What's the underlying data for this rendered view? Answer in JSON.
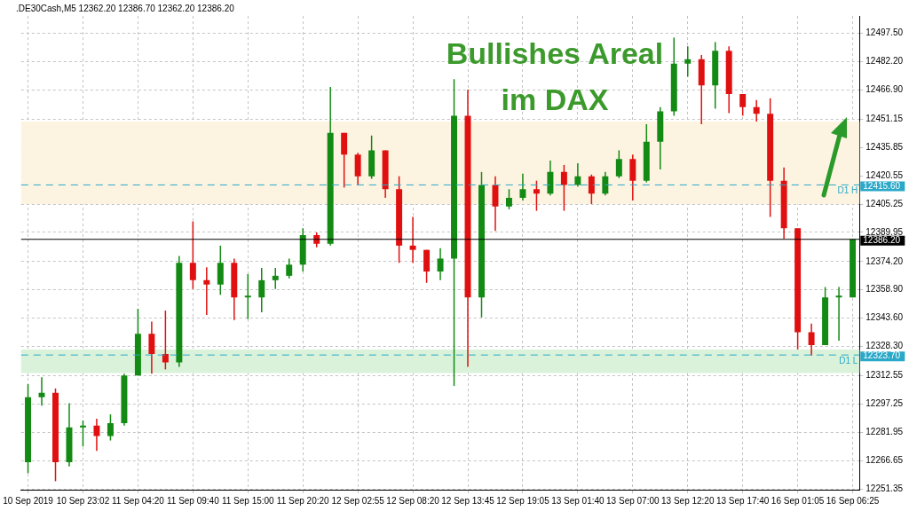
{
  "chart_data": {
    "type": "candlestick",
    "title": "Bullishes Areal im DAX",
    "subtitle": ".DE30Cash,M5  12362.20 12386.70 12362.20 12386.20",
    "categories": [
      "10 Sep 2019",
      null,
      null,
      null,
      "10 Sep 23:02",
      null,
      null,
      null,
      "11 Sep 04:20",
      null,
      null,
      null,
      "11 Sep 09:40",
      null,
      null,
      null,
      "11 Sep 15:00",
      null,
      null,
      null,
      "11 Sep 20:20",
      null,
      null,
      null,
      "12 Sep 02:55",
      null,
      null,
      null,
      "12 Sep 08:20",
      null,
      null,
      null,
      "12 Sep 13:45",
      null,
      null,
      null,
      "12 Sep 19:05",
      null,
      null,
      null,
      "13 Sep 01:40",
      null,
      null,
      null,
      "13 Sep 07:00",
      null,
      null,
      null,
      "13 Sep 12:20",
      null,
      null,
      null,
      "13 Sep 17:40",
      null,
      null,
      null,
      "16 Sep 01:05",
      null,
      null,
      null,
      "16 Sep 06:25"
    ],
    "ohlc": [
      [
        12265.8,
        12308.0,
        12259.8,
        12300.9
      ],
      [
        12300.9,
        12311.7,
        12296.3,
        12303.3
      ],
      [
        12303.3,
        12305.6,
        12255.5,
        12265.8
      ],
      [
        12265.8,
        12297.7,
        12263.5,
        12284.6
      ],
      [
        12284.6,
        12288.3,
        12274.3,
        12285.5
      ],
      [
        12285.5,
        12289.2,
        12271.9,
        12279.9
      ],
      [
        12279.9,
        12291.6,
        12277.5,
        12286.9
      ],
      [
        12286.9,
        12313.6,
        12285.5,
        12312.6
      ],
      [
        12312.6,
        12348.7,
        12312.6,
        12335.1
      ],
      [
        12335.1,
        12341.7,
        12313.6,
        12324.3
      ],
      [
        12324.3,
        12347.7,
        12315.9,
        12319.7
      ],
      [
        12319.7,
        12377.2,
        12317.3,
        12373.5
      ],
      [
        12373.5,
        12395.9,
        12359.4,
        12364.1
      ],
      [
        12364.1,
        12371.1,
        12345.4,
        12361.8
      ],
      [
        12361.8,
        12382.8,
        12356.2,
        12373.5
      ],
      [
        12373.5,
        12375.8,
        12342.6,
        12354.8
      ],
      [
        12354.8,
        12367.4,
        12343.1,
        12354.8
      ],
      [
        12354.8,
        12370.7,
        12346.8,
        12364.1
      ],
      [
        12364.1,
        12370.7,
        12359.4,
        12366.5
      ],
      [
        12366.5,
        12375.8,
        12365.1,
        12372.5
      ],
      [
        12372.5,
        12392.2,
        12368.8,
        12388.5
      ],
      [
        12388.5,
        12389.9,
        12381.9,
        12383.8
      ],
      [
        12383.8,
        12468.5,
        12382.8,
        12443.7
      ],
      [
        12443.7,
        12443.7,
        12414.2,
        12432.0
      ],
      [
        12432.0,
        12432.9,
        12415.6,
        12420.3
      ],
      [
        12420.3,
        12442.3,
        12418.9,
        12434.3
      ],
      [
        12434.3,
        12434.3,
        12408.6,
        12413.3
      ],
      [
        12413.3,
        12420.3,
        12373.5,
        12382.8
      ],
      [
        12382.8,
        12398.3,
        12373.5,
        12380.5
      ],
      [
        12380.5,
        12380.5,
        12362.7,
        12368.8
      ],
      [
        12368.8,
        12381.4,
        12364.1,
        12375.8
      ],
      [
        12375.8,
        12472.7,
        12307.0,
        12453.0
      ],
      [
        12453.0,
        12467.1,
        12317.3,
        12354.8
      ],
      [
        12354.8,
        12422.6,
        12344.0,
        12415.6
      ],
      [
        12415.6,
        12420.3,
        12390.8,
        12403.9
      ],
      [
        12403.9,
        12413.3,
        12402.5,
        12408.6
      ],
      [
        12408.6,
        12421.7,
        12407.2,
        12413.3
      ],
      [
        12413.3,
        12417.9,
        12401.6,
        12410.9
      ],
      [
        12410.9,
        12428.7,
        12410.0,
        12422.6
      ],
      [
        12422.6,
        12426.4,
        12401.6,
        12415.6
      ],
      [
        12415.6,
        12427.3,
        12414.7,
        12420.3
      ],
      [
        12420.3,
        12421.2,
        12405.3,
        12410.9
      ],
      [
        12410.9,
        12422.6,
        12410.0,
        12420.3
      ],
      [
        12420.3,
        12434.3,
        12419.3,
        12429.6
      ],
      [
        12429.6,
        12432.0,
        12407.2,
        12417.9
      ],
      [
        12417.9,
        12448.4,
        12417.0,
        12439.0
      ],
      [
        12439.0,
        12457.7,
        12424.0,
        12455.4
      ],
      [
        12455.4,
        12495.2,
        12453.0,
        12481.1
      ],
      [
        12481.1,
        12490.5,
        12474.1,
        12483.5
      ],
      [
        12483.5,
        12485.8,
        12448.4,
        12469.4
      ],
      [
        12469.4,
        12492.8,
        12456.8,
        12488.1
      ],
      [
        12488.1,
        12490.5,
        12454.4,
        12464.7
      ],
      [
        12464.7,
        12464.7,
        12453.0,
        12457.7
      ],
      [
        12457.7,
        12461.5,
        12449.8,
        12454.0
      ],
      [
        12454.0,
        12462.4,
        12398.3,
        12417.9
      ],
      [
        12417.9,
        12425.0,
        12386.6,
        12392.2
      ],
      [
        12392.2,
        12392.2,
        12326.7,
        12336.0
      ],
      [
        12336.0,
        12340.7,
        12323.4,
        12329.0
      ],
      [
        12329.0,
        12360.4,
        12329.0,
        12354.8
      ],
      [
        12354.8,
        12360.4,
        12331.4,
        12354.8
      ],
      [
        12354.8,
        12386.2,
        12354.8,
        12386.2
      ]
    ],
    "colors": [
      "#138a13",
      "#138a13",
      "#e01010",
      "#138a13",
      "#138a13",
      "#e01010",
      "#138a13",
      "#138a13",
      "#138a13",
      "#e01010",
      "#e01010",
      "#138a13",
      "#e01010",
      "#e01010",
      "#138a13",
      "#e01010",
      "#138a13",
      "#138a13",
      "#138a13",
      "#138a13",
      "#138a13",
      "#e01010",
      "#138a13",
      "#e01010",
      "#e01010",
      "#138a13",
      "#e01010",
      "#e01010",
      "#e01010",
      "#e01010",
      "#138a13",
      "#138a13",
      "#e01010",
      "#138a13",
      "#e01010",
      "#138a13",
      "#138a13",
      "#e01010",
      "#138a13",
      "#e01010",
      "#138a13",
      "#e01010",
      "#138a13",
      "#138a13",
      "#e01010",
      "#138a13",
      "#138a13",
      "#138a13",
      "#138a13",
      "#e01010",
      "#138a13",
      "#e01010",
      "#e01010",
      "#e01010",
      "#e01010",
      "#e01010",
      "#e01010",
      "#e01010",
      "#138a13",
      "#138a13",
      "#138a13"
    ],
    "ylim": [
      12250.9,
      12506.9
    ],
    "yticks": [
      {
        "value": 12251.35,
        "label": "12251.35"
      },
      {
        "value": 12266.65,
        "label": "12266.65"
      },
      {
        "value": 12281.95,
        "label": "12281.95"
      },
      {
        "value": 12297.25,
        "label": "12297.25"
      },
      {
        "value": 12312.55,
        "label": "12312.55"
      },
      {
        "value": 12328.3,
        "label": "12328.30"
      },
      {
        "value": 12343.6,
        "label": "12343.60"
      },
      {
        "value": 12358.9,
        "label": "12358.90"
      },
      {
        "value": 12374.2,
        "label": "12374.20"
      },
      {
        "value": 12389.95,
        "label": "12389.95"
      },
      {
        "value": 12405.25,
        "label": "12405.25"
      },
      {
        "value": 12420.55,
        "label": "12420.55"
      },
      {
        "value": 12435.85,
        "label": "12435.85"
      },
      {
        "value": 12451.15,
        "label": "12451.15"
      },
      {
        "value": 12466.9,
        "label": "12466.90"
      },
      {
        "value": 12482.2,
        "label": "12482.20"
      },
      {
        "value": 12497.5,
        "label": "12497.50"
      }
    ],
    "grid": true,
    "bands": [
      {
        "axis": "y",
        "from": 12405.3,
        "to": 12449.8,
        "color": "#fdf3e1"
      },
      {
        "axis": "y",
        "from": 12314.0,
        "to": 12326.7,
        "color": "#d9f2d9"
      }
    ],
    "annotations": [
      "12415.60",
      "12323.70",
      "12386.20"
    ],
    "ref_lines": [
      {
        "axis": "y",
        "value": 12415.6,
        "label": "D1 H",
        "color": "#2aa8c8",
        "line_style": "dashed"
      },
      {
        "axis": "y",
        "value": 12323.7,
        "label": "D1 L",
        "color": "#2aa8c8",
        "line_style": "dashed"
      },
      {
        "axis": "y",
        "value": 12386.2,
        "color": "#000000",
        "line_style": "solid"
      }
    ]
  }
}
